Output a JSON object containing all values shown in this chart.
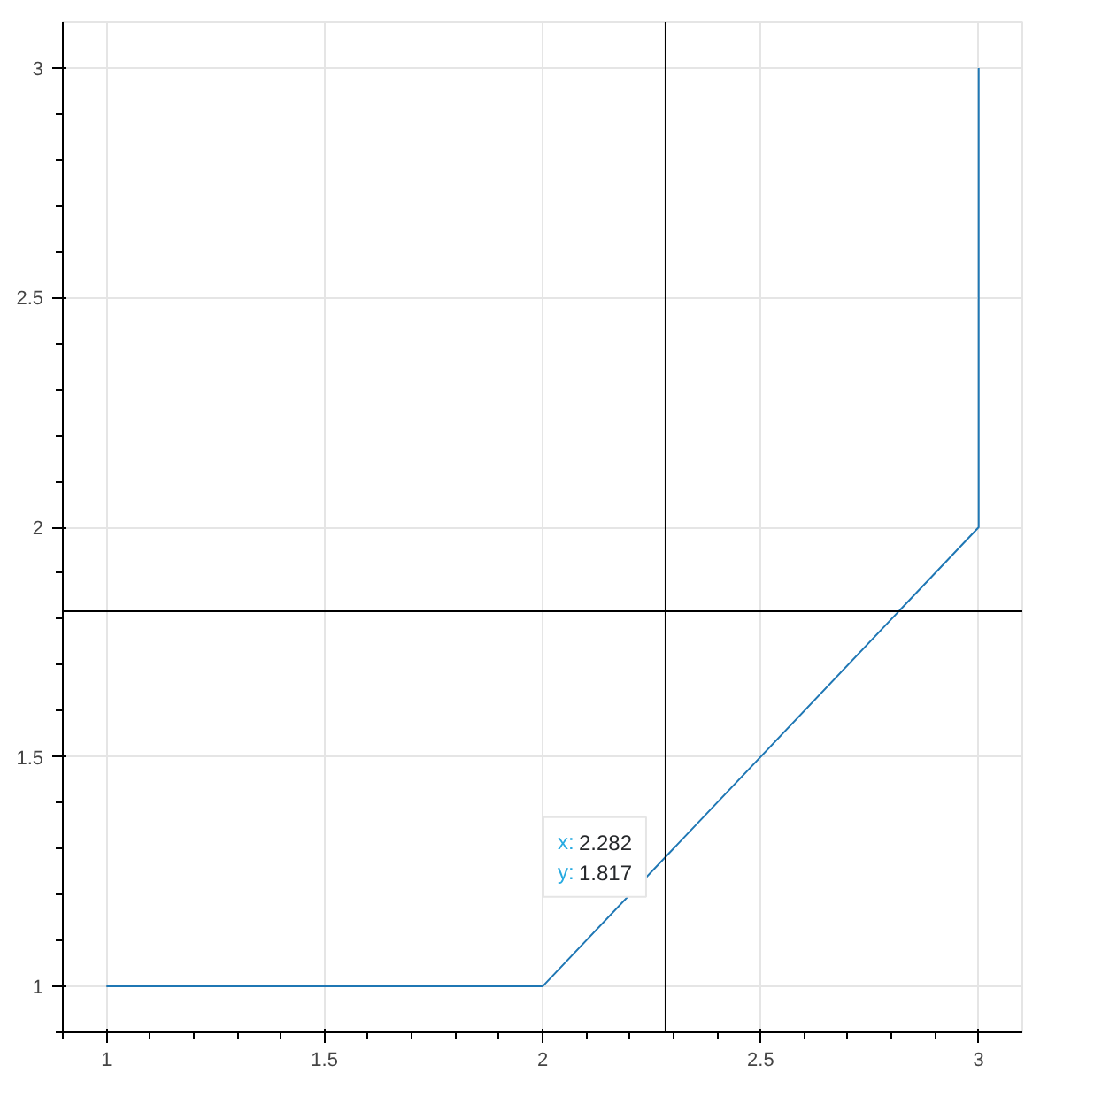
{
  "chart_data": {
    "type": "line",
    "x": [
      1,
      2,
      3,
      3
    ],
    "values": [
      1,
      1,
      2,
      3
    ],
    "color": "#1f77b4",
    "xlim": [
      0.9,
      3.1
    ],
    "ylim": [
      0.9,
      3.1
    ],
    "xticks": [
      1,
      1.5,
      2,
      2.5,
      3
    ],
    "yticks": [
      1,
      1.5,
      2,
      2.5,
      3
    ],
    "grid": true,
    "ref_lines": [
      {
        "axis": "x",
        "value": 2.282,
        "color": "#000000"
      },
      {
        "axis": "y",
        "value": 1.817,
        "color": "#000000"
      }
    ],
    "annotations": [
      {
        "text": "x: 2.282",
        "x": 2.282,
        "y": 1.282
      },
      {
        "text": "y: 1.817",
        "x": 2.282,
        "y": 1.282
      }
    ]
  }
}
